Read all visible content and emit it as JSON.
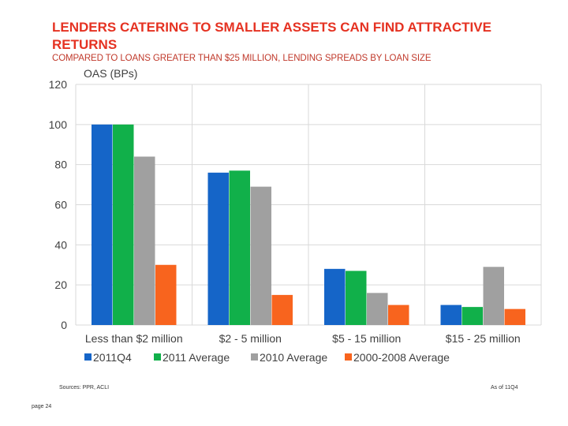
{
  "title": "LENDERS CATERING TO SMALLER ASSETS CAN FIND ATTRACTIVE RETURNS",
  "subtitle": "COMPARED TO LOANS GREATER THAN $25 MILLION, LENDING SPREADS BY LOAN SIZE",
  "footer": {
    "sources": "Sources: PPR, ACLI",
    "as_of": "As of 11Q4",
    "page": "page 24"
  },
  "colors": {
    "title": "#e53222",
    "grid": "#d9d9d9",
    "axis_text": "#404040"
  },
  "chart_data": {
    "type": "bar",
    "ylabel": "OAS (BPs)",
    "ylim": [
      0,
      120
    ],
    "yticks": [
      0,
      20,
      40,
      60,
      80,
      100,
      120
    ],
    "grid": true,
    "legend_position": "bottom",
    "categories": [
      "Less than $2 million",
      "$2 - 5 million",
      "$5 - 15 million",
      "$15 - 25 million"
    ],
    "series": [
      {
        "name": "2011Q4",
        "color": "#1565c8",
        "values": [
          100,
          76,
          28,
          10
        ]
      },
      {
        "name": "2011 Average",
        "color": "#11b04a",
        "values": [
          100,
          77,
          27,
          9
        ]
      },
      {
        "name": "2010 Average",
        "color": "#a0a0a0",
        "values": [
          84,
          69,
          16,
          29
        ]
      },
      {
        "name": "2000-2008 Average",
        "color": "#f8641e",
        "values": [
          30,
          15,
          10,
          8
        ]
      }
    ]
  }
}
